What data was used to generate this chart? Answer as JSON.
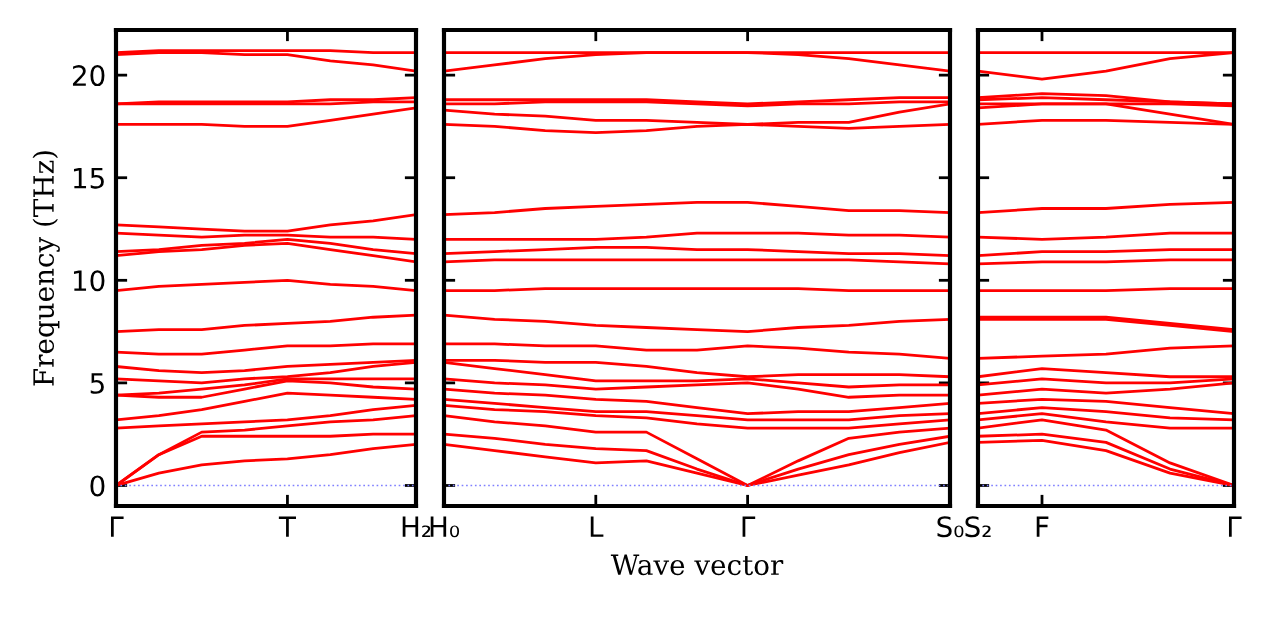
{
  "chart_data": [
    {
      "type": "line",
      "ylabel": "Frequency (THz)",
      "categories": [
        "Γ",
        null,
        null,
        null,
        "T",
        null,
        null,
        "H₂"
      ],
      "ylim": [
        -1,
        22.2
      ],
      "yticks": [
        0,
        5,
        10,
        15,
        20
      ],
      "grid": false,
      "marker": "none",
      "line_style": "solid",
      "ref_lines": [
        {
          "axis": "y",
          "value": 0,
          "label": null,
          "color": "#8080ff",
          "line_style": "dotted"
        }
      ],
      "series": [
        {
          "color": "#ff0000",
          "values": [
            0,
            0.6,
            1.0,
            1.2,
            1.3,
            1.5,
            1.8,
            2.0
          ]
        },
        {
          "color": "#ff0000",
          "values": [
            0,
            1.5,
            2.4,
            2.4,
            2.4,
            2.4,
            2.5,
            2.5
          ]
        },
        {
          "color": "#ff0000",
          "values": [
            0,
            1.5,
            2.6,
            2.7,
            2.9,
            3.1,
            3.2,
            3.4
          ]
        },
        {
          "color": "#ff0000",
          "values": [
            2.8,
            2.9,
            3.0,
            3.1,
            3.2,
            3.4,
            3.7,
            3.9
          ]
        },
        {
          "color": "#ff0000",
          "values": [
            3.2,
            3.4,
            3.7,
            4.1,
            4.5,
            4.4,
            4.3,
            4.2
          ]
        },
        {
          "color": "#ff0000",
          "values": [
            4.4,
            4.3,
            4.3,
            4.7,
            5.1,
            5.0,
            4.8,
            4.7
          ]
        },
        {
          "color": "#ff0000",
          "values": [
            4.4,
            4.5,
            4.7,
            4.9,
            5.2,
            5.2,
            5.2,
            5.2
          ]
        },
        {
          "color": "#ff0000",
          "values": [
            5.2,
            5.1,
            5.0,
            5.2,
            5.3,
            5.5,
            5.8,
            6.0
          ]
        },
        {
          "color": "#ff0000",
          "values": [
            5.8,
            5.6,
            5.5,
            5.6,
            5.8,
            5.9,
            6.0,
            6.1
          ]
        },
        {
          "color": "#ff0000",
          "values": [
            6.5,
            6.4,
            6.4,
            6.6,
            6.8,
            6.8,
            6.9,
            6.9
          ]
        },
        {
          "color": "#ff0000",
          "values": [
            7.5,
            7.6,
            7.6,
            7.8,
            7.9,
            8.0,
            8.2,
            8.3
          ]
        },
        {
          "color": "#ff0000",
          "values": [
            9.5,
            9.7,
            9.8,
            9.9,
            10.0,
            9.8,
            9.7,
            9.5
          ]
        },
        {
          "color": "#ff0000",
          "values": [
            11.2,
            11.4,
            11.5,
            11.7,
            11.8,
            11.5,
            11.2,
            10.9
          ]
        },
        {
          "color": "#ff0000",
          "values": [
            11.4,
            11.5,
            11.7,
            11.8,
            12.0,
            11.8,
            11.5,
            11.3
          ]
        },
        {
          "color": "#ff0000",
          "values": [
            12.3,
            12.2,
            12.1,
            12.2,
            12.2,
            12.1,
            12.1,
            12.0
          ]
        },
        {
          "color": "#ff0000",
          "values": [
            12.7,
            12.6,
            12.5,
            12.4,
            12.4,
            12.7,
            12.9,
            13.2
          ]
        },
        {
          "color": "#ff0000",
          "values": [
            17.6,
            17.6,
            17.6,
            17.5,
            17.5,
            17.8,
            18.1,
            18.4
          ]
        },
        {
          "color": "#ff0000",
          "values": [
            18.6,
            18.6,
            18.6,
            18.6,
            18.6,
            18.6,
            18.7,
            18.7
          ]
        },
        {
          "color": "#ff0000",
          "values": [
            18.6,
            18.7,
            18.7,
            18.7,
            18.7,
            18.8,
            18.8,
            18.9
          ]
        },
        {
          "color": "#ff0000",
          "values": [
            21.0,
            21.1,
            21.1,
            21.0,
            21.0,
            20.7,
            20.5,
            20.2
          ]
        },
        {
          "color": "#ff0000",
          "values": [
            21.1,
            21.2,
            21.2,
            21.2,
            21.2,
            21.2,
            21.1,
            21.1
          ]
        }
      ]
    },
    {
      "type": "line",
      "xlabel": "Wave vector",
      "categories": [
        "H₀",
        null,
        null,
        "L",
        null,
        null,
        "Γ",
        null,
        null,
        null,
        "S₀"
      ],
      "ylim": [
        -1,
        22.2
      ],
      "yticks": [
        0,
        5,
        10,
        15,
        20
      ],
      "tick_labels": "x",
      "grid": false,
      "marker": "none",
      "line_style": "solid",
      "ref_lines": [
        {
          "axis": "y",
          "value": 0,
          "label": null,
          "color": "#8080ff",
          "line_style": "dotted"
        }
      ],
      "series": [
        {
          "color": "#ff0000",
          "values": [
            2.0,
            1.7,
            1.4,
            1.1,
            1.2,
            0.6,
            0,
            0.5,
            1.0,
            1.6,
            2.1
          ]
        },
        {
          "color": "#ff0000",
          "values": [
            2.5,
            2.3,
            2.0,
            1.8,
            1.7,
            0.8,
            0,
            0.8,
            1.5,
            2.0,
            2.4
          ]
        },
        {
          "color": "#ff0000",
          "values": [
            3.4,
            3.1,
            2.9,
            2.6,
            2.6,
            1.3,
            0,
            1.2,
            2.3,
            2.6,
            2.8
          ]
        },
        {
          "color": "#ff0000",
          "values": [
            3.9,
            3.7,
            3.6,
            3.4,
            3.3,
            3.0,
            2.8,
            2.8,
            2.8,
            3.0,
            3.2
          ]
        },
        {
          "color": "#ff0000",
          "values": [
            4.2,
            4.0,
            3.8,
            3.6,
            3.6,
            3.4,
            3.2,
            3.2,
            3.2,
            3.4,
            3.5
          ]
        },
        {
          "color": "#ff0000",
          "values": [
            4.7,
            4.5,
            4.4,
            4.2,
            4.1,
            3.8,
            3.5,
            3.6,
            3.6,
            3.8,
            4.0
          ]
        },
        {
          "color": "#ff0000",
          "values": [
            5.2,
            5.0,
            4.9,
            4.7,
            4.8,
            4.9,
            5.0,
            4.7,
            4.3,
            4.4,
            4.4
          ]
        },
        {
          "color": "#ff0000",
          "values": [
            6.0,
            5.7,
            5.4,
            5.1,
            5.1,
            5.1,
            5.2,
            5.0,
            4.8,
            4.9,
            4.9
          ]
        },
        {
          "color": "#ff0000",
          "values": [
            6.1,
            6.1,
            6.0,
            6.0,
            5.8,
            5.5,
            5.3,
            5.4,
            5.4,
            5.4,
            5.3
          ]
        },
        {
          "color": "#ff0000",
          "values": [
            6.9,
            6.9,
            6.8,
            6.8,
            6.6,
            6.6,
            6.8,
            6.7,
            6.5,
            6.4,
            6.2
          ]
        },
        {
          "color": "#ff0000",
          "values": [
            8.3,
            8.1,
            8.0,
            7.8,
            7.7,
            7.6,
            7.5,
            7.7,
            7.8,
            8.0,
            8.1
          ]
        },
        {
          "color": "#ff0000",
          "values": [
            9.5,
            9.5,
            9.6,
            9.6,
            9.6,
            9.6,
            9.6,
            9.6,
            9.5,
            9.5,
            9.5
          ]
        },
        {
          "color": "#ff0000",
          "values": [
            10.9,
            11.0,
            11.0,
            11.0,
            11.0,
            11.0,
            11.0,
            11.0,
            11.0,
            10.9,
            10.8
          ]
        },
        {
          "color": "#ff0000",
          "values": [
            11.3,
            11.4,
            11.5,
            11.6,
            11.6,
            11.5,
            11.5,
            11.4,
            11.3,
            11.3,
            11.2
          ]
        },
        {
          "color": "#ff0000",
          "values": [
            12.0,
            12.0,
            12.0,
            12.0,
            12.1,
            12.3,
            12.3,
            12.3,
            12.2,
            12.2,
            12.1
          ]
        },
        {
          "color": "#ff0000",
          "values": [
            13.2,
            13.3,
            13.5,
            13.6,
            13.7,
            13.8,
            13.8,
            13.6,
            13.4,
            13.4,
            13.3
          ]
        },
        {
          "color": "#ff0000",
          "values": [
            17.6,
            17.5,
            17.3,
            17.2,
            17.3,
            17.5,
            17.6,
            17.5,
            17.4,
            17.5,
            17.6
          ]
        },
        {
          "color": "#ff0000",
          "values": [
            18.3,
            18.1,
            18.0,
            17.8,
            17.8,
            17.7,
            17.6,
            17.7,
            17.7,
            18.2,
            18.6
          ]
        },
        {
          "color": "#ff0000",
          "values": [
            18.6,
            18.6,
            18.7,
            18.7,
            18.7,
            18.6,
            18.5,
            18.6,
            18.6,
            18.7,
            18.7
          ]
        },
        {
          "color": "#ff0000",
          "values": [
            18.8,
            18.8,
            18.8,
            18.8,
            18.8,
            18.7,
            18.6,
            18.7,
            18.8,
            18.9,
            18.9
          ]
        },
        {
          "color": "#ff0000",
          "values": [
            20.2,
            20.5,
            20.8,
            21.0,
            21.1,
            21.1,
            21.1,
            21.0,
            20.8,
            20.5,
            20.2
          ]
        },
        {
          "color": "#ff0000",
          "values": [
            21.1,
            21.1,
            21.1,
            21.1,
            21.1,
            21.1,
            21.1,
            21.1,
            21.1,
            21.1,
            21.1
          ]
        }
      ]
    },
    {
      "type": "line",
      "categories": [
        "S₂",
        "F",
        null,
        null,
        "Γ"
      ],
      "ylim": [
        -1,
        22.2
      ],
      "yticks": [
        0,
        5,
        10,
        15,
        20
      ],
      "tick_labels": "x",
      "grid": false,
      "marker": "none",
      "line_style": "solid",
      "ref_lines": [
        {
          "axis": "y",
          "value": 0,
          "label": null,
          "color": "#8080ff",
          "line_style": "dotted"
        }
      ],
      "series": [
        {
          "color": "#ff0000",
          "values": [
            2.1,
            2.2,
            1.7,
            0.6,
            0
          ]
        },
        {
          "color": "#ff0000",
          "values": [
            2.4,
            2.5,
            2.1,
            0.8,
            0
          ]
        },
        {
          "color": "#ff0000",
          "values": [
            2.8,
            3.2,
            2.7,
            1.1,
            0
          ]
        },
        {
          "color": "#ff0000",
          "values": [
            3.2,
            3.5,
            3.1,
            2.8,
            2.8
          ]
        },
        {
          "color": "#ff0000",
          "values": [
            3.5,
            3.8,
            3.6,
            3.3,
            3.2
          ]
        },
        {
          "color": "#ff0000",
          "values": [
            4.0,
            4.2,
            4.1,
            3.8,
            3.5
          ]
        },
        {
          "color": "#ff0000",
          "values": [
            4.4,
            4.7,
            4.5,
            4.7,
            5.0
          ]
        },
        {
          "color": "#ff0000",
          "values": [
            4.9,
            5.2,
            5.0,
            5.0,
            5.2
          ]
        },
        {
          "color": "#ff0000",
          "values": [
            5.3,
            5.7,
            5.5,
            5.3,
            5.3
          ]
        },
        {
          "color": "#ff0000",
          "values": [
            6.2,
            6.3,
            6.4,
            6.7,
            6.8
          ]
        },
        {
          "color": "#ff0000",
          "values": [
            8.1,
            8.1,
            8.1,
            7.8,
            7.5
          ]
        },
        {
          "color": "#ff0000",
          "values": [
            8.2,
            8.2,
            8.2,
            7.9,
            7.6
          ]
        },
        {
          "color": "#ff0000",
          "values": [
            9.5,
            9.5,
            9.5,
            9.6,
            9.6
          ]
        },
        {
          "color": "#ff0000",
          "values": [
            10.8,
            10.9,
            10.9,
            11.0,
            11.0
          ]
        },
        {
          "color": "#ff0000",
          "values": [
            11.2,
            11.4,
            11.4,
            11.5,
            11.5
          ]
        },
        {
          "color": "#ff0000",
          "values": [
            12.1,
            12.0,
            12.1,
            12.3,
            12.3
          ]
        },
        {
          "color": "#ff0000",
          "values": [
            13.3,
            13.5,
            13.5,
            13.7,
            13.8
          ]
        },
        {
          "color": "#ff0000",
          "values": [
            17.6,
            17.8,
            17.8,
            17.7,
            17.6
          ]
        },
        {
          "color": "#ff0000",
          "values": [
            18.4,
            18.6,
            18.6,
            18.1,
            17.6
          ]
        },
        {
          "color": "#ff0000",
          "values": [
            18.6,
            18.6,
            18.6,
            18.6,
            18.5
          ]
        },
        {
          "color": "#ff0000",
          "values": [
            18.8,
            18.9,
            18.8,
            18.7,
            18.6
          ]
        },
        {
          "color": "#ff0000",
          "values": [
            18.9,
            19.1,
            19.0,
            18.7,
            18.6
          ]
        },
        {
          "color": "#ff0000",
          "values": [
            20.2,
            19.8,
            20.2,
            20.8,
            21.1
          ]
        },
        {
          "color": "#ff0000",
          "values": [
            21.1,
            21.1,
            21.1,
            21.1,
            21.1
          ]
        }
      ]
    }
  ]
}
